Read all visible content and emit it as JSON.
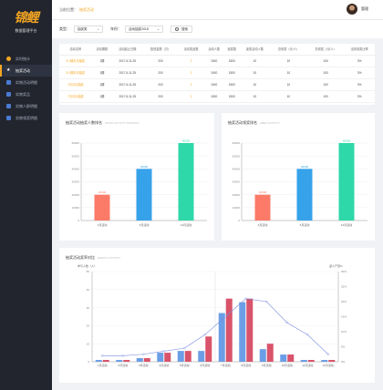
{
  "app": {
    "logo_text": "锦鲤",
    "logo_subtitle": "数据管理平台"
  },
  "sidebar": {
    "items": [
      {
        "label": "实时统计",
        "icon": "circle-icon",
        "color": "#f5a623",
        "active": false
      },
      {
        "label": "抽奖活动",
        "icon": "star-icon",
        "color": "#ffffff",
        "active": true
      },
      {
        "label": "实物活动明细",
        "icon": "gift-icon",
        "color": "#4a7bd0",
        "active": false
      },
      {
        "label": "实物奖品",
        "icon": "box-icon",
        "color": "#4a7bd0",
        "active": false
      },
      {
        "label": "实物人群明细",
        "icon": "user-icon",
        "color": "#4a7bd0",
        "active": false
      },
      {
        "label": "实物领奖明细",
        "icon": "list-icon",
        "color": "#4a7bd0",
        "active": false
      }
    ]
  },
  "topbar": {
    "crumb_label": "当前位置：",
    "crumb_current": "抽奖活动",
    "username": "管理"
  },
  "filter": {
    "type_label": "类型：",
    "type_value": "抽奖类",
    "year_label": "年份：",
    "year_value": "活动抽奖2018",
    "search_label": "搜索"
  },
  "table": {
    "columns": [
      "活动名称",
      "活动期数",
      "活动起止日期",
      "投放金额（万）",
      "活动奖品数",
      "活动人数",
      "返奖数",
      "返奖活动人数",
      "总领奖（元/人）",
      "总领奖（元/人）",
      "活动领奖比率"
    ],
    "rows": [
      [
        "8.1期月月抽奖",
        "1期",
        "2017.6.11-25",
        "200",
        "2",
        "1000",
        "1500",
        "10",
        "10",
        "100",
        "3%"
      ],
      [
        "8.1期月月抽奖",
        "1期",
        "2017.6.11-25",
        "200",
        "2",
        "1000",
        "1500",
        "10",
        "10",
        "100",
        "3%"
      ],
      [
        "7月月月抽奖",
        "1期",
        "2017.6.11-25",
        "200",
        "2",
        "1000",
        "1500",
        "10",
        "10",
        "100",
        "3%"
      ],
      [
        "7月月月抽奖",
        "1期",
        "2017.6.11-25",
        "200",
        "2",
        "1000",
        "1500",
        "10",
        "10",
        "100",
        "3%"
      ]
    ]
  },
  "colors": {
    "accent": "#f5a623",
    "bar_red": "#fb7b68",
    "bar_blue": "#36a2ea",
    "bar_green": "#2ed8a8",
    "mix_blue": "#6b9ee6",
    "mix_red": "#d9536a",
    "line": "#7b8ce0"
  },
  "chart_data": [
    {
      "type": "bar",
      "title": "抽奖活动抽奖人数排名",
      "subtitle": "IPSCD ACTIVITY RANKING",
      "categories": [
        "3月活动",
        "6月活动",
        "12月活动"
      ],
      "values": [
        20000,
        40000,
        60000
      ],
      "ylim": [
        0,
        60000
      ],
      "yticks": [
        0,
        10000,
        20000,
        30000,
        40000,
        50000,
        60000
      ]
    },
    {
      "type": "bar",
      "title": "抽奖活动领奖排名",
      "subtitle": "ABEF ACTIVITY",
      "categories": [
        "3月活动",
        "6月活动",
        "12月活动"
      ],
      "values": [
        20000,
        40000,
        60000
      ],
      "ylim": [
        0,
        60000
      ],
      "yticks": [
        0,
        10000,
        20000,
        30000,
        40000,
        50000,
        60000
      ]
    },
    {
      "type": "bar",
      "title": "抽奖活动奖率对比",
      "subtitle": "ENDDIT ACTIVITY",
      "left_axis_label": "参与人数（人）",
      "right_axis_label": "返人产值%",
      "categories": [
        "1月活动",
        "2月活动",
        "3月活动",
        "4月活动",
        "5月活动",
        "6月活动",
        "7月活动",
        "8月活动",
        "9月活动",
        "10月活动",
        "11月活动",
        "12月活动"
      ],
      "ylim": [
        0,
        50
      ],
      "yticks": [
        0,
        10,
        20,
        30,
        40,
        50
      ],
      "y2lim": [
        0,
        30
      ],
      "y2ticks": [
        "0%",
        "5%",
        "10%",
        "15%",
        "20%",
        "25%",
        "30%"
      ],
      "series": [
        {
          "values": [
            1,
            1,
            2,
            5,
            6,
            6,
            27,
            33,
            7,
            4,
            1,
            1
          ]
        },
        {
          "values": [
            1,
            1,
            2,
            5,
            6,
            14,
            35,
            35,
            10,
            4,
            1,
            1
          ]
        }
      ],
      "line": [
        2,
        2,
        2.5,
        3.5,
        4.5,
        9,
        15,
        21,
        20,
        13,
        9,
        2.5
      ]
    }
  ]
}
